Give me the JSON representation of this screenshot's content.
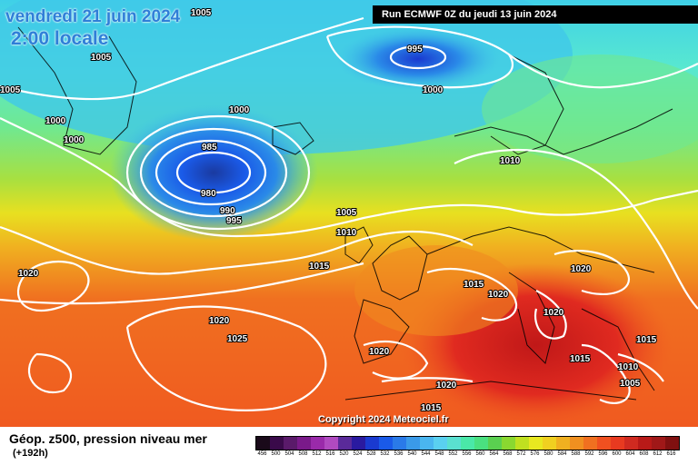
{
  "header": {
    "date": "vendredi 21 juin 2024",
    "local_time": "2:00 locale",
    "run": "Run ECMWF 0Z du jeudi 13 juin 2024"
  },
  "footer": {
    "product": "Géop. z500, pression niveau mer",
    "lead_time": "(+192h)",
    "copyright": "Copyright 2024 Meteociel.fr"
  },
  "isobar_labels": [
    "1005",
    "1005",
    "1005",
    "1000",
    "1000",
    "1000",
    "995",
    "985",
    "980",
    "990",
    "995",
    "1000",
    "1005",
    "1010",
    "1015",
    "1010",
    "1020",
    "1020",
    "1025",
    "1015",
    "1020",
    "1020",
    "1020",
    "1020",
    "1015",
    "1015",
    "1010",
    "1005",
    "1015",
    "1020"
  ],
  "scale": {
    "colors": [
      "#1a0a1a",
      "#3a0a4a",
      "#5a1a6a",
      "#7a1a8a",
      "#9a2aaa",
      "#b04ac0",
      "#5a2a9a",
      "#2a1aa0",
      "#1a3ad0",
      "#1a5ae8",
      "#2a7ae8",
      "#3a9ae8",
      "#4ab6f0",
      "#5ad0f0",
      "#5ae0d0",
      "#4ae8a8",
      "#4ae080",
      "#5ad050",
      "#8ad830",
      "#c0e020",
      "#e8e820",
      "#f0d020",
      "#f0b020",
      "#f09020",
      "#f07020",
      "#f05020",
      "#e83a20",
      "#d02a20",
      "#b81a18",
      "#a01818",
      "#801010",
      "#600808",
      "#400808",
      "#000000"
    ],
    "labels": [
      "456",
      "500",
      "504",
      "508",
      "512",
      "516",
      "520",
      "524",
      "528",
      "532",
      "536",
      "540",
      "544",
      "548",
      "552",
      "556",
      "560",
      "564",
      "568",
      "572",
      "576",
      "580",
      "584",
      "588",
      "592",
      "596",
      "600",
      "604",
      "608",
      "612",
      "616"
    ]
  }
}
